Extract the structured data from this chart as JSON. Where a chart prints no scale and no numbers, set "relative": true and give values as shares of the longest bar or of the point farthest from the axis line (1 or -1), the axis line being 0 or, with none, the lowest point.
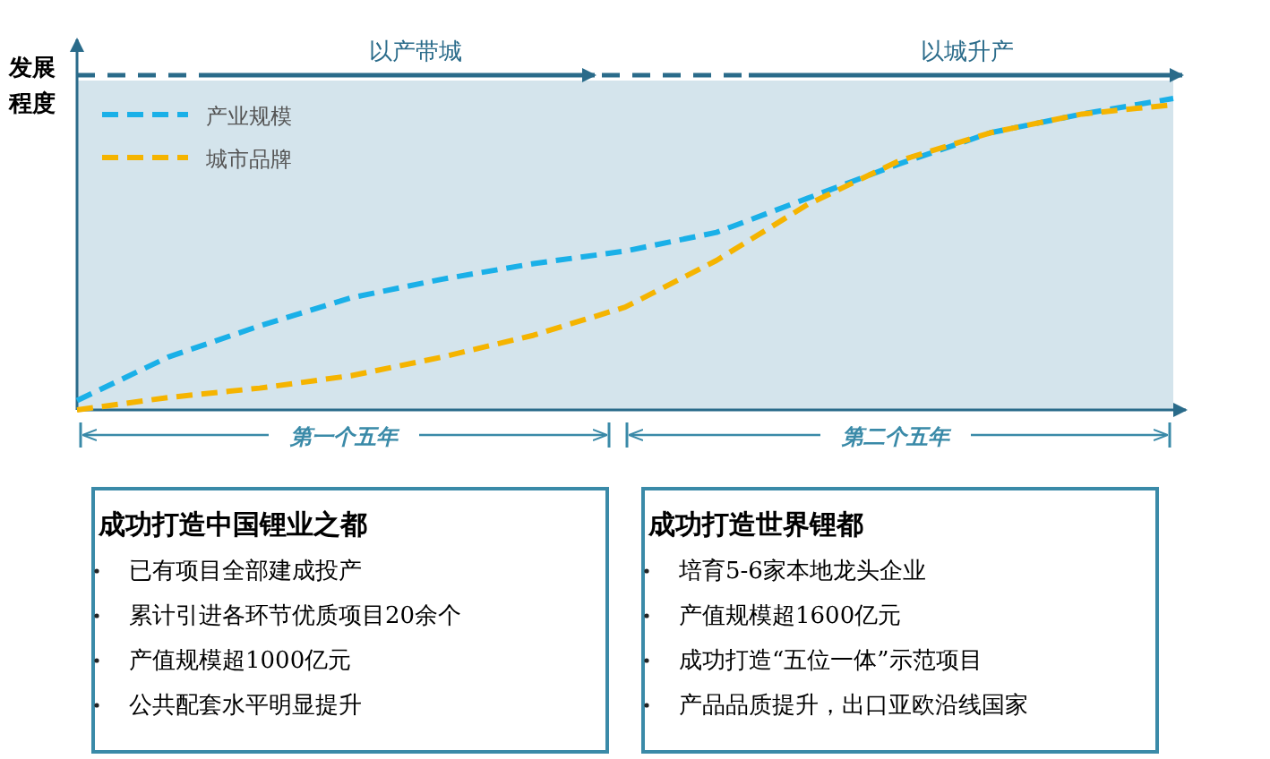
{
  "chart_data": {
    "type": "line",
    "relative": true,
    "ylabel": "发展程度",
    "legend": "top left",
    "line_style": "dashed",
    "categories": [
      null,
      null,
      null,
      null,
      null,
      null,
      null,
      null,
      null,
      null,
      null,
      null,
      null
    ],
    "series": [
      {
        "name": "产业规模",
        "color": "#1ab0e8",
        "values": [
          0.03,
          0.17,
          0.27,
          0.36,
          0.42,
          0.47,
          0.51,
          0.57,
          0.68,
          0.79,
          0.89,
          0.95,
          1.0
        ]
      },
      {
        "name": "城市品牌",
        "color": "#f5b400",
        "values": [
          0,
          0.04,
          0.07,
          0.11,
          0.17,
          0.24,
          0.33,
          0.48,
          0.66,
          0.8,
          0.89,
          0.95,
          0.98
        ]
      }
    ],
    "annotations": [
      "以产带城",
      "以城升产",
      "第一个五年",
      "第二个五年",
      "成功打造中国锂业之都",
      "已有项目全部建成投产",
      "累计引进各环节优质项目20余个",
      "产值规模超1000亿元",
      "公共配套水平明显提升",
      "成功打造世界锂都",
      "培育5-6家本地龙头企业",
      "产值规模超1600亿元",
      "成功打造“五位一体”示范项目",
      "产品品质提升，出口亚欧沿线国家"
    ]
  }
}
